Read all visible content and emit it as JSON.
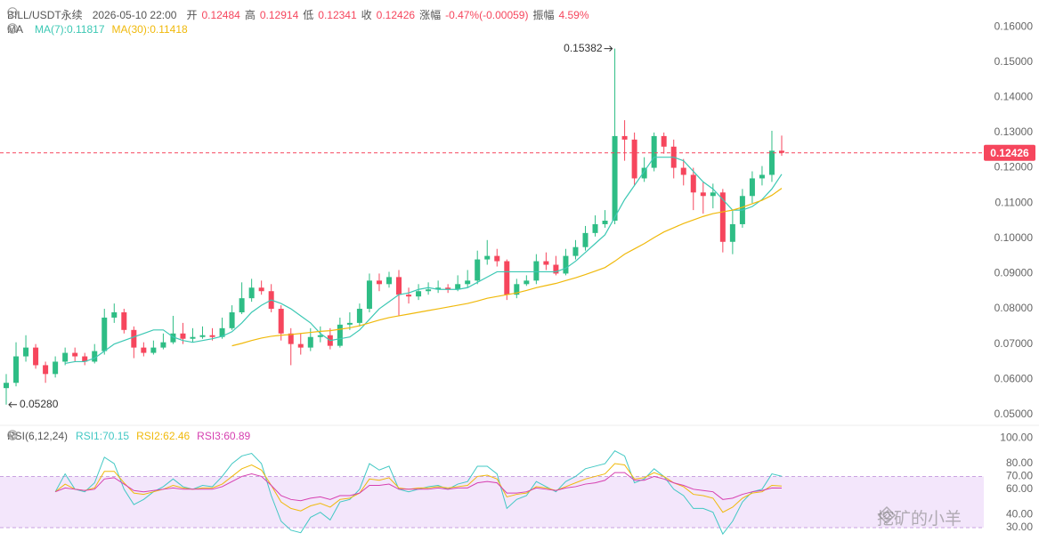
{
  "header": {
    "symbol": "BILL/USDT永续",
    "time": "2026-05-10 22:00",
    "open_label": "开",
    "high_label": "高",
    "low_label": "低",
    "close_label": "收",
    "change_label": "涨幅",
    "change": "-0.47%(-0.00059)",
    "amplitude_label": "振幅",
    "amplitude": "4.59%"
  },
  "watermark": "挖矿的小羊",
  "chart_data": [
    {
      "type": "candlestick",
      "indicator": "MA",
      "up_color": "#2ebd85",
      "down_color": "#f6465d",
      "ylim": [
        0.0477,
        0.1676
      ],
      "yticks": [
        {
          "value": 0.05,
          "label": "0.05000"
        },
        {
          "value": 0.06,
          "label": "0.06000"
        },
        {
          "value": 0.07,
          "label": "0.07000"
        },
        {
          "value": 0.08,
          "label": "0.08000"
        },
        {
          "value": 0.09,
          "label": "0.09000"
        },
        {
          "value": 0.1,
          "label": "0.10000"
        },
        {
          "value": 0.11,
          "label": "0.11000"
        },
        {
          "value": 0.12,
          "label": "0.12000"
        },
        {
          "value": 0.13,
          "label": "0.13000"
        },
        {
          "value": 0.14,
          "label": "0.14000"
        },
        {
          "value": 0.15,
          "label": "0.15000"
        },
        {
          "value": 0.16,
          "label": "0.16000"
        }
      ],
      "grid": false,
      "min_label": "0.05280",
      "open": [
        0.0575,
        0.059,
        0.0665,
        0.069,
        0.064,
        0.0615,
        0.065,
        0.0675,
        0.0665,
        0.065,
        0.068,
        0.0775,
        0.079,
        0.074,
        0.069,
        0.0675,
        0.069,
        0.0705,
        0.073,
        0.0715,
        0.072,
        0.0725,
        0.072,
        0.0745,
        0.079,
        0.083,
        0.086,
        0.085,
        0.08,
        0.073,
        0.07,
        0.069,
        0.072,
        0.0725,
        0.0695,
        0.0755,
        0.076,
        0.08,
        0.088,
        0.087,
        0.089,
        0.084,
        0.0835,
        0.085,
        0.0855,
        0.086,
        0.0855,
        0.087,
        0.088,
        0.094,
        0.095,
        0.0935,
        0.084,
        0.087,
        0.088,
        0.0935,
        0.0925,
        0.09,
        0.095,
        0.0975,
        0.1015,
        0.104,
        0.105,
        0.129,
        0.128,
        0.117,
        0.12,
        0.129,
        0.126,
        0.12,
        0.118,
        0.113,
        0.112,
        0.113,
        0.099,
        0.104,
        0.112,
        0.117,
        0.118,
        0.12484
      ],
      "high": [
        0.0615,
        0.0705,
        0.0725,
        0.07,
        0.065,
        0.0665,
        0.069,
        0.069,
        0.0675,
        0.07,
        0.08,
        0.0815,
        0.08,
        0.075,
        0.0705,
        0.071,
        0.073,
        0.078,
        0.076,
        0.0745,
        0.075,
        0.0745,
        0.0775,
        0.081,
        0.0875,
        0.0885,
        0.088,
        0.087,
        0.081,
        0.0745,
        0.073,
        0.0745,
        0.075,
        0.0745,
        0.0775,
        0.079,
        0.0815,
        0.09,
        0.09,
        0.0905,
        0.091,
        0.086,
        0.087,
        0.0875,
        0.088,
        0.087,
        0.0895,
        0.091,
        0.0965,
        0.0995,
        0.097,
        0.094,
        0.0885,
        0.0895,
        0.0955,
        0.096,
        0.095,
        0.097,
        0.0995,
        0.1035,
        0.1065,
        0.108,
        0.15382,
        0.1335,
        0.13,
        0.123,
        0.13,
        0.13,
        0.128,
        0.1225,
        0.12,
        0.116,
        0.1155,
        0.114,
        0.108,
        0.114,
        0.119,
        0.1205,
        0.1305,
        0.12914
      ],
      "low": [
        0.0528,
        0.058,
        0.065,
        0.063,
        0.059,
        0.0605,
        0.064,
        0.065,
        0.064,
        0.0645,
        0.067,
        0.076,
        0.073,
        0.066,
        0.0665,
        0.067,
        0.0685,
        0.07,
        0.07,
        0.0705,
        0.0715,
        0.071,
        0.0715,
        0.074,
        0.0785,
        0.082,
        0.084,
        0.079,
        0.071,
        0.064,
        0.067,
        0.068,
        0.0705,
        0.0685,
        0.069,
        0.074,
        0.075,
        0.079,
        0.085,
        0.086,
        0.078,
        0.0815,
        0.0825,
        0.084,
        0.0845,
        0.0845,
        0.085,
        0.086,
        0.087,
        0.0925,
        0.092,
        0.0825,
        0.083,
        0.0865,
        0.087,
        0.091,
        0.0895,
        0.0895,
        0.094,
        0.0965,
        0.1005,
        0.103,
        0.104,
        0.122,
        0.115,
        0.116,
        0.119,
        0.124,
        0.117,
        0.115,
        0.108,
        0.107,
        0.1085,
        0.096,
        0.0955,
        0.103,
        0.11,
        0.115,
        0.116,
        0.12341
      ],
      "close": [
        0.059,
        0.0665,
        0.069,
        0.064,
        0.0615,
        0.065,
        0.0675,
        0.0665,
        0.065,
        0.068,
        0.0775,
        0.079,
        0.074,
        0.069,
        0.0675,
        0.069,
        0.0705,
        0.073,
        0.0715,
        0.072,
        0.0725,
        0.072,
        0.0745,
        0.079,
        0.083,
        0.086,
        0.085,
        0.08,
        0.073,
        0.07,
        0.069,
        0.072,
        0.0725,
        0.0695,
        0.0755,
        0.076,
        0.08,
        0.088,
        0.087,
        0.089,
        0.084,
        0.0835,
        0.085,
        0.0855,
        0.086,
        0.0855,
        0.087,
        0.088,
        0.094,
        0.095,
        0.0935,
        0.084,
        0.087,
        0.088,
        0.0935,
        0.0925,
        0.09,
        0.095,
        0.0975,
        0.1015,
        0.104,
        0.105,
        0.129,
        0.128,
        0.117,
        0.12,
        0.129,
        0.126,
        0.12,
        0.118,
        0.113,
        0.112,
        0.113,
        0.099,
        0.104,
        0.112,
        0.117,
        0.118,
        0.12484,
        0.12426
      ],
      "series": [
        {
          "name": "MA(7)",
          "color": "#3cc8b4",
          "values": [
            null,
            null,
            null,
            null,
            null,
            null,
            0.0645,
            0.065,
            0.065,
            0.066,
            0.068,
            0.07,
            0.071,
            0.072,
            0.073,
            0.074,
            0.074,
            0.072,
            0.071,
            0.0705,
            0.071,
            0.0715,
            0.0722,
            0.0735,
            0.076,
            0.079,
            0.081,
            0.0825,
            0.0815,
            0.08,
            0.078,
            0.076,
            0.073,
            0.071,
            0.0715,
            0.072,
            0.074,
            0.077,
            0.08,
            0.082,
            0.084,
            0.0845,
            0.0855,
            0.086,
            0.0855,
            0.0855,
            0.0855,
            0.086,
            0.0875,
            0.089,
            0.0905,
            0.0905,
            0.0905,
            0.0905,
            0.0905,
            0.0905,
            0.0905,
            0.0915,
            0.0935,
            0.096,
            0.0985,
            0.101,
            0.106,
            0.111,
            0.115,
            0.119,
            0.123,
            0.123,
            0.123,
            0.122,
            0.119,
            0.116,
            0.114,
            0.111,
            0.108,
            0.108,
            0.109,
            0.111,
            0.114,
            0.11817
          ]
        },
        {
          "name": "MA(30)",
          "color": "#f0b90b",
          "values": [
            null,
            null,
            null,
            null,
            null,
            null,
            null,
            null,
            null,
            null,
            null,
            null,
            null,
            null,
            null,
            null,
            null,
            null,
            null,
            null,
            null,
            null,
            null,
            0.0695,
            0.0702,
            0.071,
            0.0717,
            0.0722,
            0.0725,
            0.0727,
            0.073,
            0.0733,
            0.0736,
            0.0738,
            0.0742,
            0.0746,
            0.0752,
            0.076,
            0.0768,
            0.0775,
            0.078,
            0.0785,
            0.079,
            0.0795,
            0.08,
            0.0805,
            0.081,
            0.0815,
            0.0822,
            0.083,
            0.0835,
            0.084,
            0.0845,
            0.0852,
            0.086,
            0.0866,
            0.0872,
            0.088,
            0.0888,
            0.0897,
            0.0907,
            0.0917,
            0.0935,
            0.0955,
            0.097,
            0.0985,
            0.1002,
            0.1018,
            0.103,
            0.1042,
            0.1052,
            0.1062,
            0.107,
            0.1075,
            0.108,
            0.1088,
            0.1098,
            0.1108,
            0.1122,
            0.11418
          ]
        }
      ]
    },
    {
      "type": "line",
      "title": "RSI(6,12,24)",
      "ylim": [
        23,
        103
      ],
      "yticks": [
        {
          "value": 100,
          "label": "100.00"
        },
        {
          "value": 80,
          "label": "80.00"
        },
        {
          "value": 70,
          "label": "70.00"
        },
        {
          "value": 60,
          "label": "60.00"
        },
        {
          "value": 40,
          "label": "40.00"
        },
        {
          "value": 30,
          "label": "30.00"
        }
      ],
      "band": [
        30,
        70
      ],
      "band_color": "#f3e6fb",
      "series": [
        {
          "name": "RSI1",
          "color": "#42c8c4",
          "values": [
            null,
            null,
            null,
            null,
            null,
            58,
            72,
            60,
            58,
            65,
            85,
            80,
            60,
            48,
            52,
            58,
            62,
            68,
            62,
            60,
            63,
            62,
            70,
            80,
            86,
            88,
            80,
            55,
            35,
            28,
            26,
            38,
            42,
            36,
            50,
            52,
            60,
            80,
            75,
            78,
            60,
            58,
            60,
            62,
            63,
            60,
            64,
            66,
            78,
            78,
            72,
            45,
            52,
            55,
            66,
            62,
            58,
            66,
            70,
            76,
            78,
            80,
            90,
            86,
            65,
            68,
            76,
            70,
            60,
            55,
            45,
            45,
            42,
            25,
            35,
            50,
            58,
            60,
            72,
            70.15
          ]
        },
        {
          "name": "RSI2",
          "color": "#f0b90b",
          "values": [
            null,
            null,
            null,
            null,
            null,
            58,
            64,
            60,
            59,
            61,
            74,
            74,
            65,
            57,
            56,
            58,
            60,
            63,
            61,
            60,
            61,
            61,
            64,
            70,
            76,
            79,
            75,
            63,
            50,
            45,
            43,
            47,
            49,
            46,
            52,
            53,
            57,
            68,
            67,
            69,
            61,
            60,
            61,
            61,
            62,
            61,
            62,
            63,
            70,
            71,
            68,
            54,
            56,
            57,
            62,
            61,
            59,
            62,
            65,
            68,
            70,
            72,
            80,
            79,
            68,
            69,
            73,
            70,
            65,
            62,
            56,
            55,
            53,
            42,
            46,
            53,
            57,
            58,
            63,
            62.46
          ]
        },
        {
          "name": "RSI3",
          "color": "#d63fb0",
          "values": [
            null,
            null,
            null,
            null,
            null,
            58,
            61,
            60,
            59,
            60,
            68,
            69,
            64,
            59,
            58,
            59,
            60,
            61,
            60,
            60,
            60,
            60,
            62,
            66,
            70,
            72,
            70,
            63,
            55,
            52,
            51,
            53,
            54,
            52,
            55,
            55,
            57,
            63,
            63,
            64,
            60,
            60,
            60,
            60,
            61,
            60,
            61,
            61,
            65,
            66,
            65,
            57,
            57,
            58,
            61,
            60,
            59,
            61,
            62,
            64,
            65,
            67,
            73,
            73,
            67,
            67,
            70,
            68,
            65,
            63,
            60,
            59,
            58,
            52,
            53,
            56,
            58,
            59,
            61,
            60.89
          ]
        }
      ]
    }
  ]
}
